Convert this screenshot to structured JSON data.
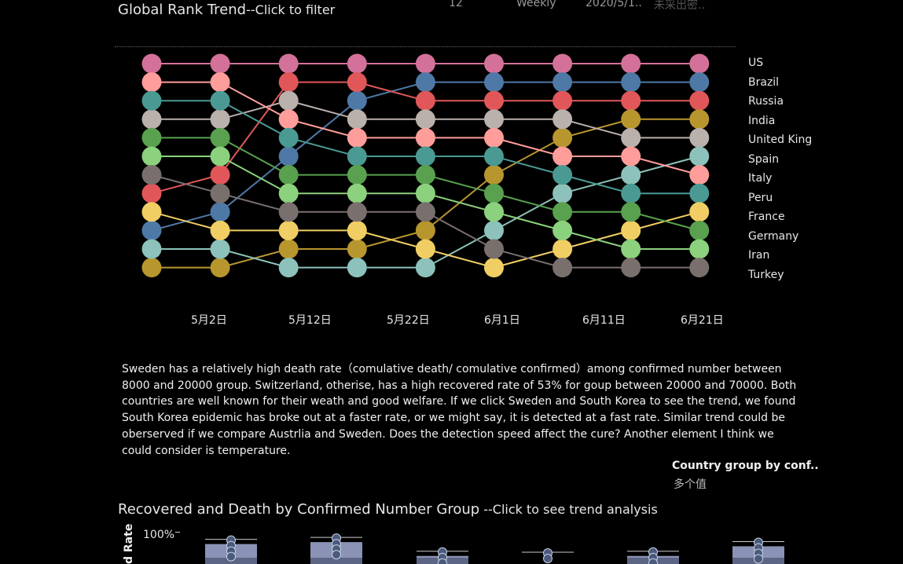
{
  "header": {
    "title": "Global Rank Trend",
    "title_suffix": "--Click to filter",
    "meta_number": "12",
    "meta_period": "Weekly",
    "meta_date": "2020/5/1..",
    "meta_dim": "未采出密.."
  },
  "chart_data": {
    "type": "line",
    "title": "Global Rank Trend",
    "x_tick_labels": [
      "5月2日",
      "5月12日",
      "5月22日",
      "6月1日",
      "6月11日",
      "6月21日"
    ],
    "x_points": 9,
    "ylim": [
      1,
      12
    ],
    "legend": [
      "US",
      "Brazil",
      "Russia",
      "India",
      "United King",
      "Spain",
      "Italy",
      "Peru",
      "France",
      "Germany",
      "Iran",
      "Turkey"
    ],
    "series": [
      {
        "name": "US",
        "color": "#d4719a",
        "values": [
          1,
          1,
          1,
          1,
          1,
          1,
          1,
          1,
          1
        ]
      },
      {
        "name": "Brazil",
        "color": "#4e79a7",
        "values": [
          10,
          9,
          6,
          3,
          2,
          2,
          2,
          2,
          2
        ]
      },
      {
        "name": "Russia",
        "color": "#e15759",
        "values": [
          8,
          7,
          2,
          2,
          3,
          3,
          3,
          3,
          3
        ]
      },
      {
        "name": "India",
        "color": "#b8962e",
        "values": [
          12,
          12,
          11,
          11,
          10,
          7,
          5,
          4,
          4
        ]
      },
      {
        "name": "United King",
        "color": "#bab0ac",
        "values": [
          4,
          4,
          3,
          4,
          4,
          4,
          4,
          5,
          5
        ]
      },
      {
        "name": "Spain",
        "color": "#8cc2bb",
        "values": [
          11,
          11,
          12,
          12,
          12,
          10,
          8,
          7,
          6
        ]
      },
      {
        "name": "Italy",
        "color": "#ff9d9a",
        "values": [
          2,
          2,
          4,
          5,
          5,
          5,
          6,
          6,
          7
        ]
      },
      {
        "name": "Peru",
        "color": "#4a9a93",
        "values": [
          3,
          3,
          5,
          6,
          6,
          6,
          7,
          8,
          8
        ]
      },
      {
        "name": "France",
        "color": "#f1ce63",
        "values": [
          9,
          10,
          10,
          10,
          11,
          12,
          11,
          10,
          9
        ]
      },
      {
        "name": "Germany",
        "color": "#59a14f",
        "values": [
          5,
          5,
          7,
          7,
          7,
          8,
          9,
          9,
          10
        ]
      },
      {
        "name": "Iran",
        "color": "#8cd17d",
        "values": [
          6,
          6,
          8,
          8,
          8,
          9,
          10,
          11,
          11
        ]
      },
      {
        "name": "Turkey",
        "color": "#79706e",
        "values": [
          7,
          8,
          9,
          9,
          9,
          11,
          12,
          12,
          12
        ]
      }
    ]
  },
  "note": {
    "text": "Sweden has a relatively high death rate（comulative death/ comulative confirmed）among confirmed number between 8000 and 20000 group. Switzerland, otherise, has a high recovered rate of 53% for goup between 20000 and 70000. Both countries are well known for their weath and good welfare. If we click Sweden and South Korea to see the trend, we found South Korea epidemic has broke out at a faster rate, or we might say, it is detected at a fast rate. Similar trend could be oberserved if we compare Austrlia  and Sweden. Does the detection speed affect the cure? Another element I think we could consider is temperature."
  },
  "filter": {
    "label": "Country group by conf..",
    "value": "多个值"
  },
  "bottom": {
    "title": "Recovered and Death by Confirmed Number Group",
    "title_suffix": " --Click to see trend analysis",
    "ylabel": "d Rate",
    "ytick_top": "100%"
  },
  "bottom_chart": {
    "groups": [
      {
        "recovered": 0.62,
        "dots": 4
      },
      {
        "recovered": 0.68,
        "dots": 4
      },
      {
        "recovered": 0.25,
        "dots": 3
      },
      {
        "recovered": 0.05,
        "dots": 2
      },
      {
        "recovered": 0.25,
        "dots": 3
      },
      {
        "recovered": 0.55,
        "dots": 4
      }
    ]
  }
}
